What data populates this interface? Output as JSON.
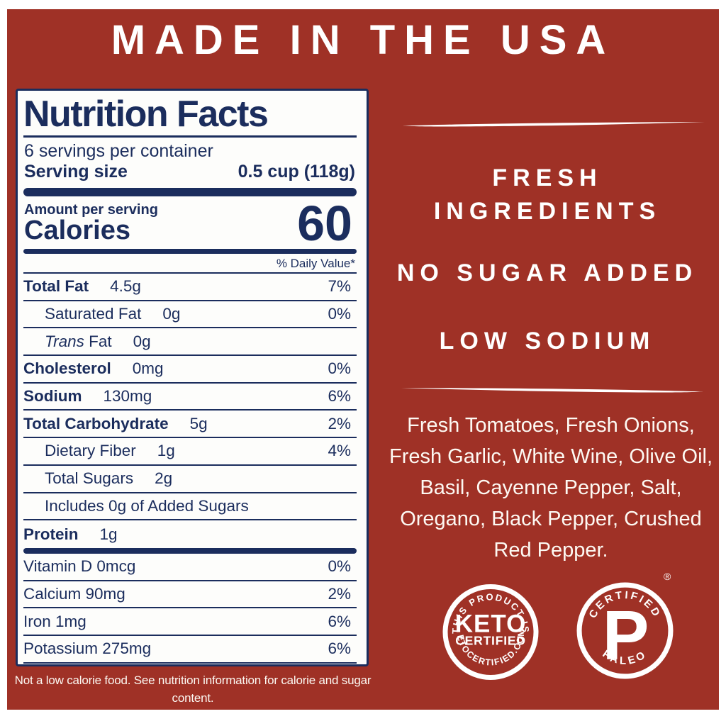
{
  "page": {
    "header": "MADE IN THE USA",
    "colors": {
      "background_red": "#9f3126",
      "label_navy": "#1b2d5d",
      "text_white": "#ffffff"
    }
  },
  "label": {
    "title": "Nutrition Facts",
    "servings": "6 servings per container",
    "serving_size_label": "Serving size",
    "serving_size_value": "0.5 cup (118g)",
    "amount_per_serving": "Amount per serving",
    "calories_label": "Calories",
    "calories_value": "60",
    "daily_value_header": "% Daily Value*",
    "rows": [
      {
        "name": "Total Fat",
        "amount": "4.5g",
        "dv": "7%",
        "bold": true,
        "indent": 0
      },
      {
        "name": "Saturated Fat",
        "amount": "0g",
        "dv": "0%",
        "bold": false,
        "indent": 1
      },
      {
        "name_italic": "Trans",
        "name": " Fat",
        "amount": "0g",
        "dv": "",
        "bold": false,
        "indent": 1
      },
      {
        "name": "Cholesterol",
        "amount": "0mg",
        "dv": "0%",
        "bold": true,
        "indent": 0
      },
      {
        "name": "Sodium",
        "amount": "130mg",
        "dv": "6%",
        "bold": true,
        "indent": 0
      },
      {
        "name": "Total Carbohydrate",
        "amount": "5g",
        "dv": "2%",
        "bold": true,
        "indent": 0
      },
      {
        "name": "Dietary Fiber",
        "amount": "1g",
        "dv": "4%",
        "bold": false,
        "indent": 1
      },
      {
        "name": "Total Sugars",
        "amount": "2g",
        "dv": "",
        "bold": false,
        "indent": 1
      },
      {
        "name": "Includes 0g of Added Sugars",
        "amount": "",
        "dv": "",
        "bold": false,
        "indent": 1
      },
      {
        "name": "Protein",
        "amount": "1g",
        "dv": "",
        "bold": true,
        "indent": 0
      }
    ],
    "micronutrients": [
      {
        "name": "Vitamin D 0mcg",
        "dv": "0%"
      },
      {
        "name": "Calcium 90mg",
        "dv": "2%"
      },
      {
        "name": "Iron 1mg",
        "dv": "6%"
      },
      {
        "name": "Potassium 275mg",
        "dv": "6%"
      }
    ],
    "footnote": "Not a low calorie food. See nutrition information for calorie and sugar content."
  },
  "right_panel": {
    "claims": [
      "FRESH INGREDIENTS",
      "NO SUGAR ADDED",
      "LOW SODIUM"
    ],
    "ingredients": "Fresh Tomatoes, Fresh Onions, Fresh Garlic, White Wine, Olive Oil, Basil, Cayenne Pepper, Salt, Oregano, Black Pepper, Crushed Red Pepper."
  },
  "badges": {
    "keto": {
      "arc_top": "THIS PRODUCT IS",
      "main": "KETO",
      "sub": "CERTIFIED",
      "arc_bottom": "KETOCERTIFIED.COM"
    },
    "paleo": {
      "arc_top": "CERTIFIED",
      "main": "P",
      "arc_bottom": "PALEO",
      "registered": "®"
    }
  }
}
